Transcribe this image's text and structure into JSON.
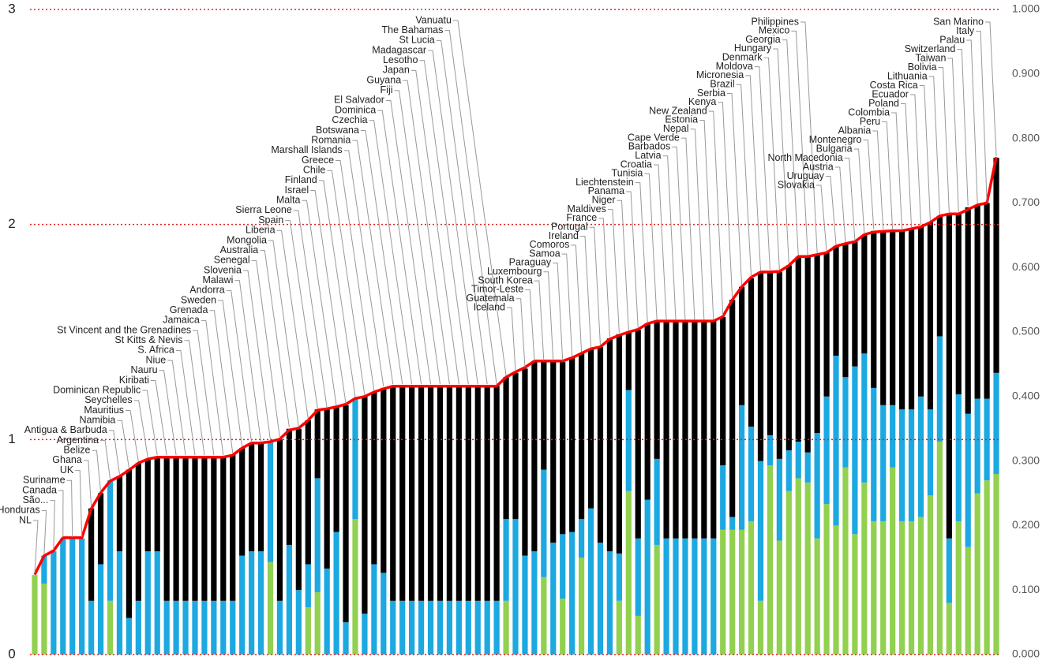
{
  "chart_data": {
    "type": "stacked-bar-line",
    "categories": [
      "NL",
      "Honduras",
      "São...",
      "Canada",
      "Suriname",
      "UK",
      "Ghana",
      "Belize",
      "Argentina",
      "Antigua & Barbuda",
      "Namibia",
      "Mauritius",
      "Seychelles",
      "Dominican Republic",
      "Kiribati",
      "Nauru",
      "Niue",
      "S. Africa",
      "St Kitts & Nevis",
      "St Vincent and the Grenadines",
      "Jamaica",
      "Grenada",
      "Sweden",
      "Andorra",
      "Malawi",
      "Slovenia",
      "Senegal",
      "Australia",
      "Mongolia",
      "Liberia",
      "Spain",
      "Sierra Leone",
      "Malta",
      "Israel",
      "Finland",
      "Chile",
      "Greece",
      "Marshall Islands",
      "Romania",
      "Botswana",
      "Czechia",
      "Dominica",
      "El Salvador",
      "Fiji",
      "Guyana",
      "Japan",
      "Lesotho",
      "Madagascar",
      "St Lucia",
      "The Bahamas",
      "Vanuatu",
      "Iceland",
      "Guatemala",
      "Timor-Leste",
      "South Korea",
      "Luxembourg",
      "Paraguay",
      "Samoa",
      "Comoros",
      "Ireland",
      "Portugal",
      "France",
      "Maldives",
      "Niger",
      "Panama",
      "Liechtenstein",
      "Tunisia",
      "Croatia",
      "Latvia",
      "Barbados",
      "Cape Verde",
      "Nepal",
      "Estonia",
      "New Zealand",
      "Kenya",
      "Serbia",
      "Brazil",
      "Micronesia",
      "Moldova",
      "Denmark",
      "Hungary",
      "Georgia",
      "Mexico",
      "Philippines",
      "Slovakia",
      "Uruguay",
      "Austria",
      "North Macedonia",
      "Bulgaria",
      "Montenegro",
      "Albania",
      "Peru",
      "Colombia",
      "Poland",
      "Ecuador",
      "Costa Rica",
      "Lithuania",
      "Bolivia",
      "Taiwan",
      "Switzerland",
      "Palau",
      "Italy",
      "San Marino"
    ],
    "series": [
      {
        "color": "#92d050",
        "values": [
          0.37,
          0.33,
          0,
          0,
          0,
          0,
          0,
          0,
          0.25,
          0,
          0,
          0,
          0,
          0,
          0,
          0,
          0,
          0,
          0,
          0,
          0,
          0,
          0,
          0,
          0,
          0.43,
          0,
          0,
          0,
          0.22,
          0.29,
          0,
          0,
          0,
          0.63,
          0,
          0,
          0,
          0,
          0,
          0,
          0,
          0,
          0,
          0,
          0,
          0,
          0,
          0,
          0,
          0.25,
          0,
          0,
          0,
          0.36,
          0,
          0.26,
          0,
          0.45,
          0,
          0,
          0,
          0.25,
          0.76,
          0.18,
          0,
          0.51,
          0,
          0,
          0,
          0,
          0,
          0,
          0.58,
          0.58,
          0.58,
          0.62,
          0.25,
          0.88,
          0.53,
          0.76,
          0.82,
          0.8,
          0.54,
          0.7,
          0.6,
          0.87,
          0.56,
          0.8,
          0.62,
          0.62,
          0.87,
          0.62,
          0.62,
          0.64,
          0.74,
          0.99,
          0.24,
          0.62,
          0.5,
          0.75,
          0.81,
          0.84
        ]
      },
      {
        "color": "#1ca8e0",
        "values": [
          0,
          0.13,
          0.48,
          0.54,
          0.54,
          0.54,
          0.25,
          0.42,
          0.56,
          0.48,
          0.17,
          0.25,
          0.48,
          0.48,
          0.25,
          0.25,
          0.25,
          0.25,
          0.25,
          0.25,
          0.25,
          0.25,
          0.46,
          0.48,
          0.48,
          0.56,
          0.25,
          0.51,
          0.3,
          0.2,
          0.53,
          0.4,
          0.57,
          0.15,
          0.56,
          0.19,
          0.42,
          0.38,
          0.25,
          0.25,
          0.25,
          0.25,
          0.25,
          0.25,
          0.25,
          0.25,
          0.25,
          0.25,
          0.25,
          0.25,
          0.38,
          0.63,
          0.46,
          0.48,
          0.5,
          0.52,
          0.3,
          0.57,
          0.18,
          0.68,
          0.52,
          0.48,
          0.22,
          0.47,
          0.36,
          0.72,
          0.4,
          0.54,
          0.54,
          0.54,
          0.54,
          0.54,
          0.54,
          0.3,
          0.06,
          0.58,
          0.44,
          0.65,
          0.14,
          0.38,
          0.19,
          0.17,
          0.14,
          0.49,
          0.5,
          0.79,
          0.42,
          0.78,
          0.6,
          0.62,
          0.54,
          0.29,
          0.52,
          0.52,
          0.56,
          0.4,
          0.49,
          0.3,
          0.59,
          0.62,
          0.44,
          0.38,
          0.47
        ]
      },
      {
        "color": "#000000",
        "values": [
          0,
          0,
          0,
          0,
          0,
          0,
          0.43,
          0.33,
          0,
          0.35,
          0.69,
          0.64,
          0.43,
          0.44,
          0.67,
          0.67,
          0.67,
          0.67,
          0.67,
          0.67,
          0.67,
          0.68,
          0.5,
          0.5,
          0.5,
          0,
          0.75,
          0.54,
          0.75,
          0.67,
          0.32,
          0.74,
          0.58,
          1.01,
          0,
          1.01,
          0.8,
          0.86,
          1.0,
          1.0,
          1.0,
          1.0,
          1.0,
          1.0,
          1.0,
          1.0,
          1.0,
          1.0,
          1.0,
          1.0,
          0.66,
          0.68,
          0.87,
          0.88,
          0.5,
          0.84,
          0.8,
          0.81,
          0.77,
          0.74,
          0.91,
          0.99,
          1.02,
          0.27,
          0.97,
          0.82,
          0.64,
          1.01,
          1.01,
          1.01,
          1.01,
          1.01,
          1.01,
          0.69,
          1.01,
          0.55,
          0.69,
          0.88,
          0.76,
          0.87,
          0.86,
          0.86,
          0.91,
          0.83,
          0.67,
          0.51,
          0.62,
          0.58,
          0.55,
          0.73,
          0.81,
          0.81,
          0.83,
          0.84,
          0.79,
          0.87,
          0.56,
          1.51,
          0.84,
          0.96,
          0.9,
          0.91,
          1.0
        ]
      },
      {
        "color": "#ff0000",
        "axis": "y2",
        "values": [
          0.124,
          0.153,
          0.161,
          0.181,
          0.181,
          0.181,
          0.226,
          0.251,
          0.269,
          0.276,
          0.286,
          0.297,
          0.303,
          0.306,
          0.306,
          0.306,
          0.306,
          0.306,
          0.306,
          0.306,
          0.306,
          0.309,
          0.32,
          0.328,
          0.328,
          0.33,
          0.334,
          0.348,
          0.351,
          0.363,
          0.379,
          0.381,
          0.384,
          0.388,
          0.397,
          0.4,
          0.407,
          0.412,
          0.416,
          0.416,
          0.416,
          0.416,
          0.416,
          0.416,
          0.416,
          0.416,
          0.416,
          0.416,
          0.416,
          0.416,
          0.43,
          0.438,
          0.445,
          0.455,
          0.455,
          0.455,
          0.455,
          0.46,
          0.467,
          0.474,
          0.477,
          0.489,
          0.495,
          0.5,
          0.504,
          0.513,
          0.517,
          0.517,
          0.517,
          0.517,
          0.517,
          0.517,
          0.517,
          0.524,
          0.55,
          0.57,
          0.585,
          0.593,
          0.593,
          0.594,
          0.603,
          0.617,
          0.617,
          0.62,
          0.623,
          0.633,
          0.637,
          0.64,
          0.651,
          0.655,
          0.656,
          0.657,
          0.657,
          0.66,
          0.663,
          0.67,
          0.68,
          0.683,
          0.683,
          0.69,
          0.697,
          0.7,
          0.771
        ]
      }
    ],
    "ylim": [
      0,
      3
    ],
    "yticks": [
      0,
      1,
      2,
      3
    ],
    "y2lim": [
      0,
      1
    ],
    "y2ticks": [
      {
        "value": 0,
        "label": "0.000"
      },
      {
        "value": 0.1,
        "label": "0.100"
      },
      {
        "value": 0.2,
        "label": "0.200"
      },
      {
        "value": 0.3,
        "label": "0.300"
      },
      {
        "value": 0.4,
        "label": "0.400"
      },
      {
        "value": 0.5,
        "label": "0.500"
      },
      {
        "value": 0.6,
        "label": "0.600"
      },
      {
        "value": 0.7,
        "label": "0.700"
      },
      {
        "value": 0.8,
        "label": "0.800"
      },
      {
        "value": 0.9,
        "label": "0.900"
      },
      {
        "value": 1,
        "label": "1.000"
      }
    ],
    "grid": true,
    "grid_color": "#e02020"
  }
}
